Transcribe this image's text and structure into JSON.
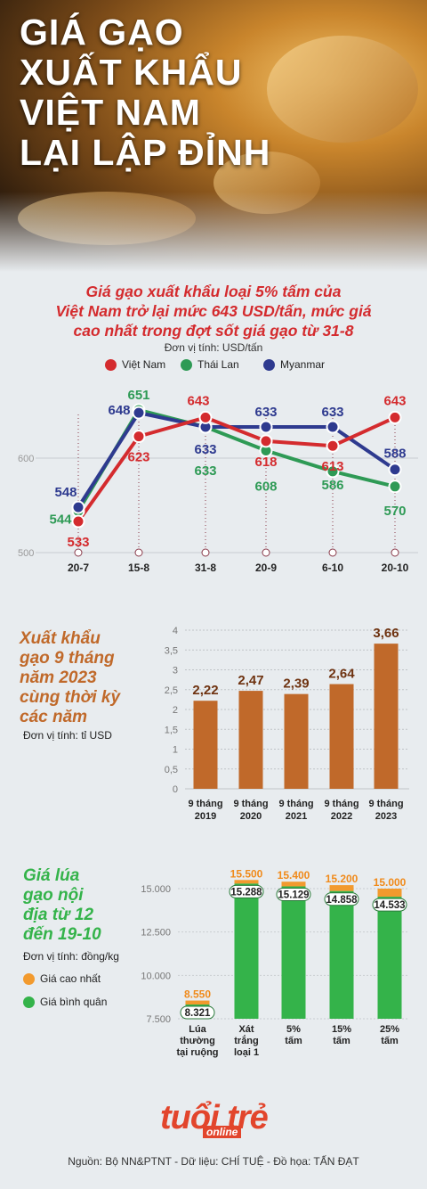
{
  "title_lines": [
    "GIÁ GẠO",
    "XUẤT KHẨU",
    "VIỆT NAM",
    "LẠI LẬP ĐỈNH"
  ],
  "subtitle_lines": [
    "Giá gạo xuất khẩu loại 5% tấm của",
    "Việt Nam trở lại mức 643 USD/tấn, mức giá",
    "cao nhất trong đợt sốt giá gạo từ 31-8"
  ],
  "colors": {
    "vietnam": "#d42b2e",
    "thailand": "#2e9a55",
    "myanmar": "#2e3a8f",
    "bar": "#c0692a",
    "rice_max": "#f29a2e",
    "rice_avg": "#34b34a"
  },
  "chart_data": [
    {
      "type": "line",
      "unit": "Đơn vị tính: USD/tấn",
      "categories": [
        "20-7",
        "15-8",
        "31-8",
        "20-9",
        "6-10",
        "20-10"
      ],
      "yticks": [
        500,
        600
      ],
      "ylim": [
        500,
        670
      ],
      "series": [
        {
          "name": "Việt Nam",
          "values": [
            533,
            623,
            643,
            618,
            613,
            643
          ]
        },
        {
          "name": "Thái Lan",
          "values": [
            544,
            651,
            633,
            608,
            586,
            570
          ]
        },
        {
          "name": "Myanmar",
          "values": [
            548,
            648,
            633,
            633,
            633,
            588
          ]
        }
      ],
      "legend": "top"
    },
    {
      "type": "bar",
      "title_lines": [
        "Xuất khẩu",
        "gạo 9 tháng",
        "năm 2023",
        "cùng thời kỳ",
        "các năm"
      ],
      "unit": "Đơn vị tính: tỉ USD",
      "categories": [
        [
          "9 tháng",
          "2019"
        ],
        [
          "9 tháng",
          "2020"
        ],
        [
          "9 tháng",
          "2021"
        ],
        [
          "9 tháng",
          "2022"
        ],
        [
          "9 tháng",
          "2023"
        ]
      ],
      "values": [
        2.22,
        2.47,
        2.39,
        2.64,
        3.66
      ],
      "labels": [
        "2,22",
        "2,47",
        "2,39",
        "2,64",
        "3,66"
      ],
      "yticks": [
        "0",
        "0,5",
        "1",
        "1,5",
        "2",
        "2,5",
        "3",
        "3,5",
        "4"
      ],
      "ylim": [
        0,
        4
      ]
    },
    {
      "type": "bar",
      "title_lines": [
        "Giá lúa",
        "gạo nội",
        "địa từ 12",
        "đến 19-10"
      ],
      "unit": "Đơn vị tính: đồng/kg",
      "categories": [
        [
          "Lúa",
          "thường",
          "tại ruộng"
        ],
        [
          "Xát",
          "trắng",
          "loại 1"
        ],
        [
          "5%",
          "tấm"
        ],
        [
          "15%",
          "tấm"
        ],
        [
          "25%",
          "tấm"
        ]
      ],
      "series": [
        {
          "name": "Giá cao nhất",
          "values": [
            8550,
            15500,
            15400,
            15200,
            15000
          ],
          "labels": [
            "8.550",
            "15.500",
            "15.400",
            "15.200",
            "15.000"
          ]
        },
        {
          "name": "Giá bình quân",
          "values": [
            8321,
            15288,
            15129,
            14858,
            14533
          ],
          "labels": [
            "8.321",
            "15.288",
            "15.129",
            "14.858",
            "14.533"
          ]
        }
      ],
      "yticks": [
        "7.500",
        "10.000",
        "12.500",
        "15.000"
      ],
      "ytick_values": [
        7500,
        10000,
        12500,
        15000
      ],
      "ylim": [
        7500,
        15500
      ],
      "legend": "left"
    }
  ],
  "logo": {
    "main": "tuổi trẻ",
    "sub": "online"
  },
  "source": "Nguồn: Bộ NN&PTNT - Dữ liệu: CHÍ TUỆ - Đồ họa: TẤN ĐẠT"
}
